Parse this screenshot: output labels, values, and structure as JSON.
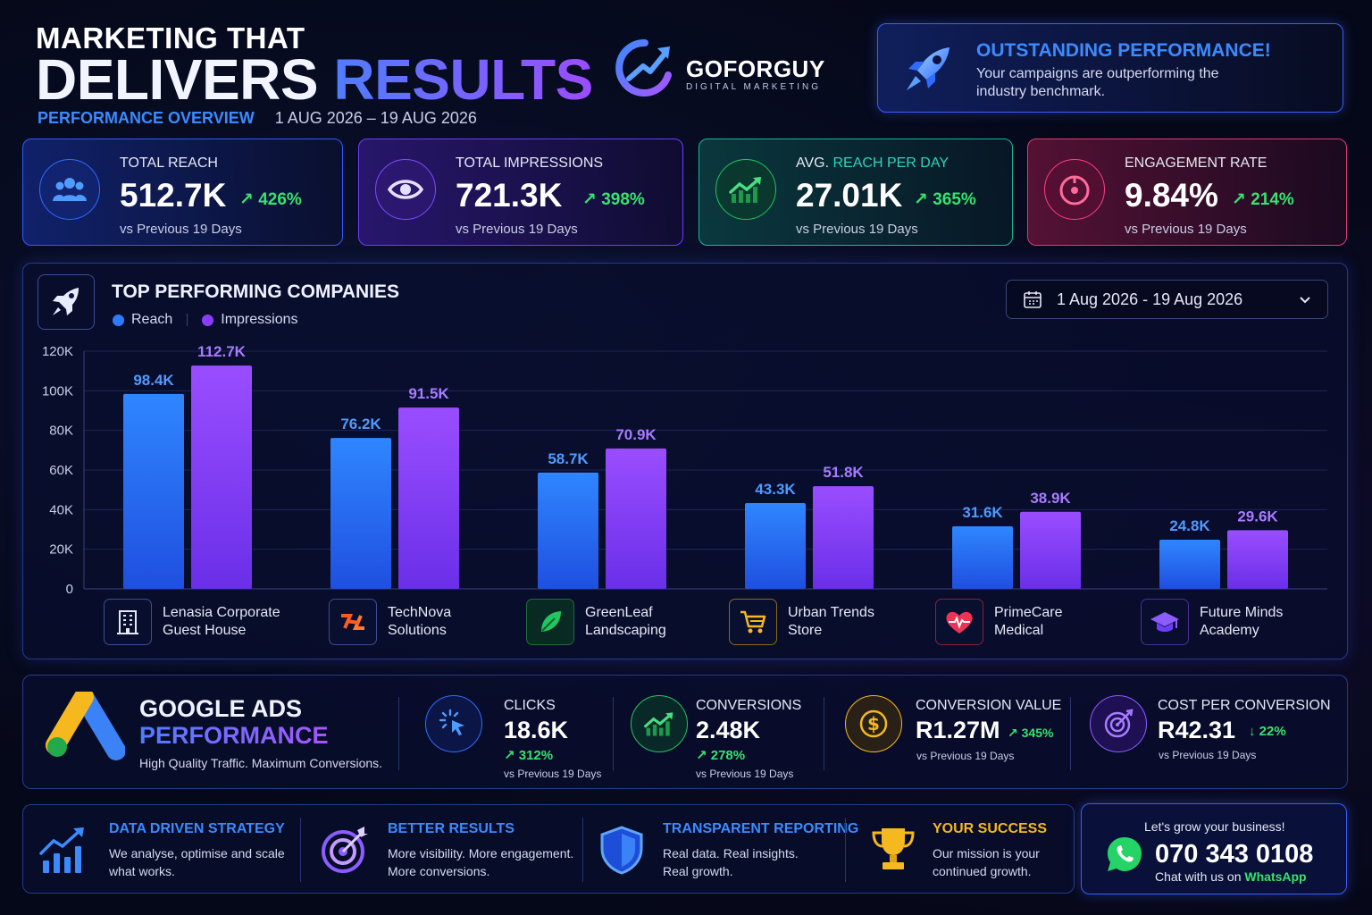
{
  "header": {
    "title_line1": "MARKETING THAT",
    "title_word1": "DELIVERS",
    "title_word2": "RESULTS",
    "overview_label": "PERFORMANCE OVERVIEW",
    "date_range": "1 AUG 2026 – 19 AUG 2026"
  },
  "logo": {
    "name": "GOFORGUY",
    "tagline": "DIGITAL MARKETING"
  },
  "banner": {
    "title": "OUTSTANDING PERFORMANCE!",
    "text": "Your campaigns are outperforming the industry benchmark.",
    "icon": "rocket-icon"
  },
  "kpis": [
    {
      "label": "TOTAL REACH",
      "value": "512.7K",
      "change": "↗ 426%",
      "note": "vs Previous 19 Days",
      "icon": "users-icon",
      "color": "#3b8bff"
    },
    {
      "label": "TOTAL IMPRESSIONS",
      "value": "721.3K",
      "change": "↗ 398%",
      "note": "vs Previous 19 Days",
      "icon": "eye-icon",
      "color": "#8b5cff"
    },
    {
      "label_prefix": "AVG. ",
      "label_highlight": "REACH PER DAY",
      "value": "27.01K",
      "change": "↗ 365%",
      "note": "vs Previous 19 Days",
      "icon": "trend-up-icon",
      "color": "#22c55e"
    },
    {
      "label": "ENGAGEMENT RATE",
      "value": "9.84%",
      "change": "↗ 214%",
      "note": "vs Previous 19 Days",
      "icon": "target-icon",
      "color": "#ff3d7f"
    }
  ],
  "chart_panel": {
    "title": "TOP PERFORMING COMPANIES",
    "date_filter": "1 Aug 2026 - 19 Aug 2026",
    "legend": [
      "Reach",
      "Impressions"
    ]
  },
  "chart_data": {
    "type": "bar",
    "categories": [
      "Lenasia Corporate Guest House",
      "TechNova Solutions",
      "GreenLeaf Landscaping",
      "Urban Trends Store",
      "PrimeCare Medical",
      "Future Minds Academy"
    ],
    "series": [
      {
        "name": "Reach",
        "values": [
          98.4,
          76.2,
          58.7,
          43.3,
          31.6,
          24.8
        ],
        "labels": [
          "98.4K",
          "76.2K",
          "58.7K",
          "43.3K",
          "31.6K",
          "24.8K"
        ],
        "color": "#2f7bff"
      },
      {
        "name": "Impressions",
        "values": [
          112.7,
          91.5,
          70.9,
          51.8,
          38.9,
          29.6
        ],
        "labels": [
          "112.7K",
          "91.5K",
          "70.9K",
          "51.8K",
          "38.9K",
          "29.6K"
        ],
        "color": "#8b3dff"
      }
    ],
    "yticks": [
      "0",
      "20K",
      "40K",
      "60K",
      "80K",
      "100K",
      "120K"
    ],
    "ylim": [
      0,
      120
    ],
    "grid": true,
    "legend": "top-left"
  },
  "companies": [
    {
      "line1": "Lenasia Corporate",
      "line2": "Guest House",
      "icon": "building-icon"
    },
    {
      "line1": "TechNova",
      "line2": "Solutions",
      "icon": "technova-logo-icon"
    },
    {
      "line1": "GreenLeaf",
      "line2": "Landscaping",
      "icon": "leaf-icon"
    },
    {
      "line1": "Urban Trends",
      "line2": "Store",
      "icon": "cart-icon"
    },
    {
      "line1": "PrimeCare",
      "line2": "Medical",
      "icon": "heart-pulse-icon"
    },
    {
      "line1": "Future Minds",
      "line2": "Academy",
      "icon": "graduation-cap-icon"
    }
  ],
  "google_ads": {
    "title1": "GOOGLE ADS",
    "title2": "PERFORMANCE",
    "tagline": "High Quality Traffic. Maximum Conversions.",
    "metrics": [
      {
        "label": "CLICKS",
        "value": "18.6K",
        "change": "↗ 312%",
        "note": "vs Previous 19 Days",
        "icon": "cursor-click-icon"
      },
      {
        "label": "CONVERSIONS",
        "value": "2.48K",
        "change": "↗ 278%",
        "note": "vs Previous 19 Days",
        "icon": "trend-up-icon"
      },
      {
        "label": "CONVERSION VALUE",
        "value": "R1.27M",
        "change": "↗ 345%",
        "note": "vs Previous 19 Days",
        "icon": "dollar-icon"
      },
      {
        "label": "COST PER CONVERSION",
        "value": "R42.31",
        "change": "↓ 22%",
        "note": "vs Previous 19 Days",
        "icon": "target-icon"
      }
    ]
  },
  "features": [
    {
      "title": "DATA DRIVEN STRATEGY",
      "line1": "We analyse, optimise and scale",
      "line2": "what works.",
      "icon": "chart-growth-icon"
    },
    {
      "title": "BETTER RESULTS",
      "line1": "More visibility. More engagement.",
      "line2": "More conversions.",
      "icon": "target-arrow-icon"
    },
    {
      "title": "TRANSPARENT REPORTING",
      "line1": "Real data. Real insights.",
      "line2": "Real growth.",
      "icon": "shield-icon"
    },
    {
      "title": "YOUR SUCCESS",
      "line1": "Our mission is your",
      "line2": "continued growth.",
      "icon": "trophy-icon"
    }
  ],
  "whatsapp": {
    "line1": "Let's grow your business!",
    "phone": "070 343 0108",
    "line3_prefix": "Chat with us on ",
    "line3_brand": "WhatsApp",
    "icon": "whatsapp-icon"
  }
}
